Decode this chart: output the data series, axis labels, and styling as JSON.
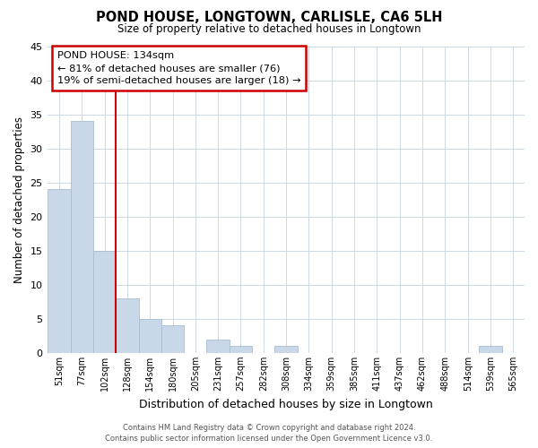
{
  "title": "POND HOUSE, LONGTOWN, CARLISLE, CA6 5LH",
  "subtitle": "Size of property relative to detached houses in Longtown",
  "xlabel": "Distribution of detached houses by size in Longtown",
  "ylabel": "Number of detached properties",
  "bin_labels": [
    "51sqm",
    "77sqm",
    "102sqm",
    "128sqm",
    "154sqm",
    "180sqm",
    "205sqm",
    "231sqm",
    "257sqm",
    "282sqm",
    "308sqm",
    "334sqm",
    "359sqm",
    "385sqm",
    "411sqm",
    "437sqm",
    "462sqm",
    "488sqm",
    "514sqm",
    "539sqm",
    "565sqm"
  ],
  "bar_values": [
    24,
    34,
    15,
    8,
    5,
    4,
    0,
    2,
    1,
    0,
    1,
    0,
    0,
    0,
    0,
    0,
    0,
    0,
    0,
    1,
    0
  ],
  "bar_color": "#c8d8e8",
  "bar_edge_color": "#a8bece",
  "vline_x_index": 3,
  "vline_color": "#cc0000",
  "ylim": [
    0,
    45
  ],
  "yticks": [
    0,
    5,
    10,
    15,
    20,
    25,
    30,
    35,
    40,
    45
  ],
  "annotation_title": "POND HOUSE: 134sqm",
  "annotation_line1": "← 81% of detached houses are smaller (76)",
  "annotation_line2": "19% of semi-detached houses are larger (18) →",
  "annotation_box_color": "#ffffff",
  "annotation_box_edge": "#cc0000",
  "footer_line1": "Contains HM Land Registry data © Crown copyright and database right 2024.",
  "footer_line2": "Contains public sector information licensed under the Open Government Licence v3.0.",
  "background_color": "#ffffff",
  "grid_color": "#ccd8e4"
}
